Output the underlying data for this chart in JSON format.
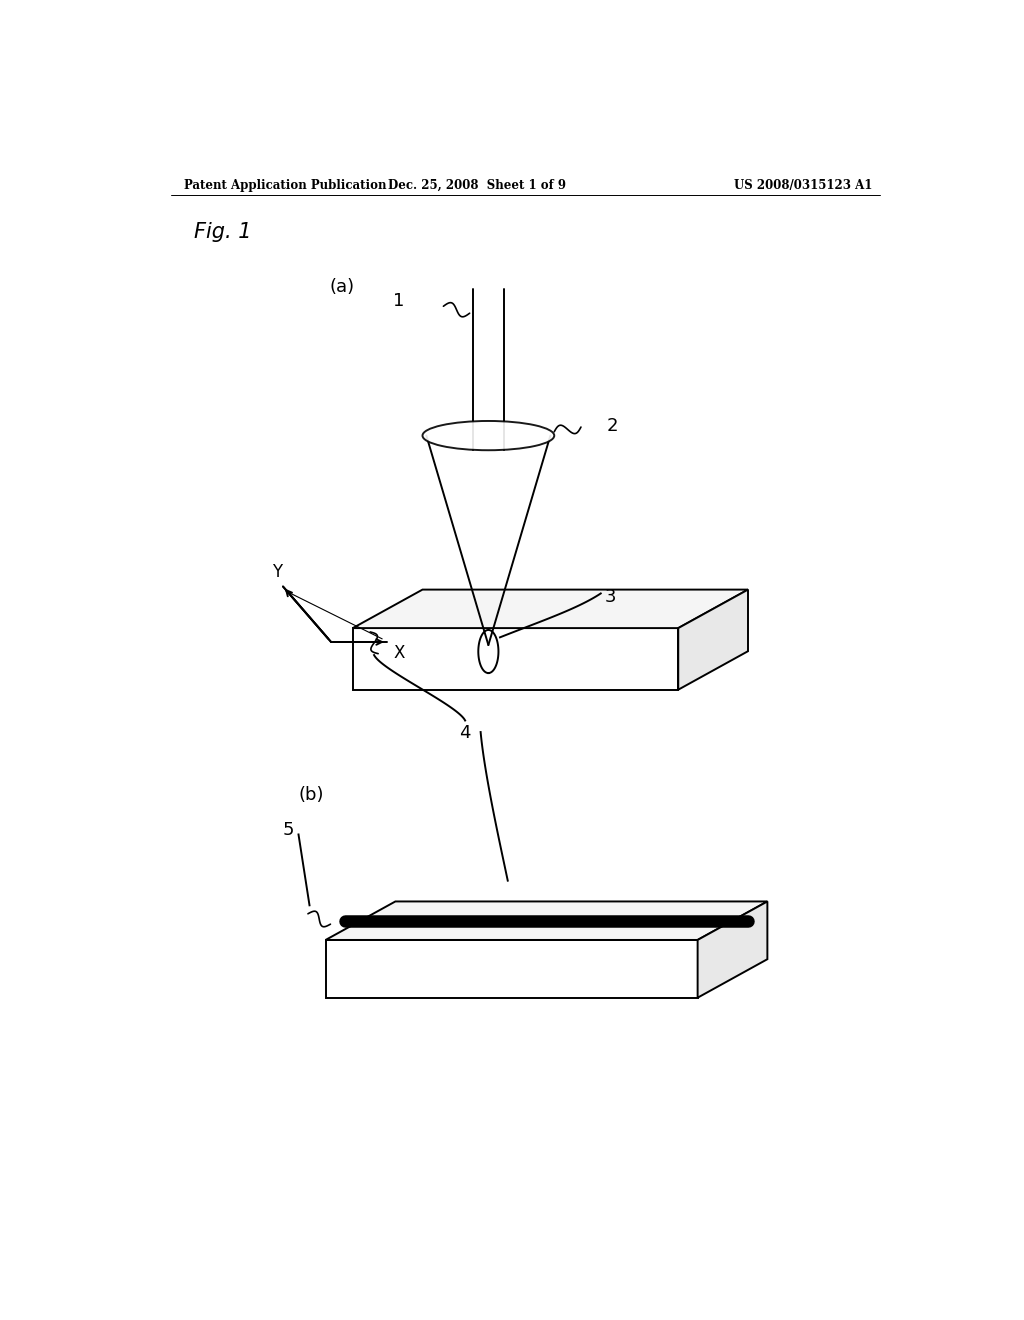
{
  "bg_color": "#ffffff",
  "header_left": "Patent Application Publication",
  "header_center": "Dec. 25, 2008  Sheet 1 of 9",
  "header_right": "US 2008/0315123 A1",
  "fig_label": "Fig. 1",
  "sub_a_label": "(a)",
  "sub_b_label": "(b)",
  "label_1": "1",
  "label_2": "2",
  "label_3": "3",
  "label_4": "4",
  "label_5": "5",
  "label_x": "X",
  "label_y": "Y",
  "line_color": "#000000",
  "box_face_color": "#ffffff",
  "box_edge_color": "#000000"
}
